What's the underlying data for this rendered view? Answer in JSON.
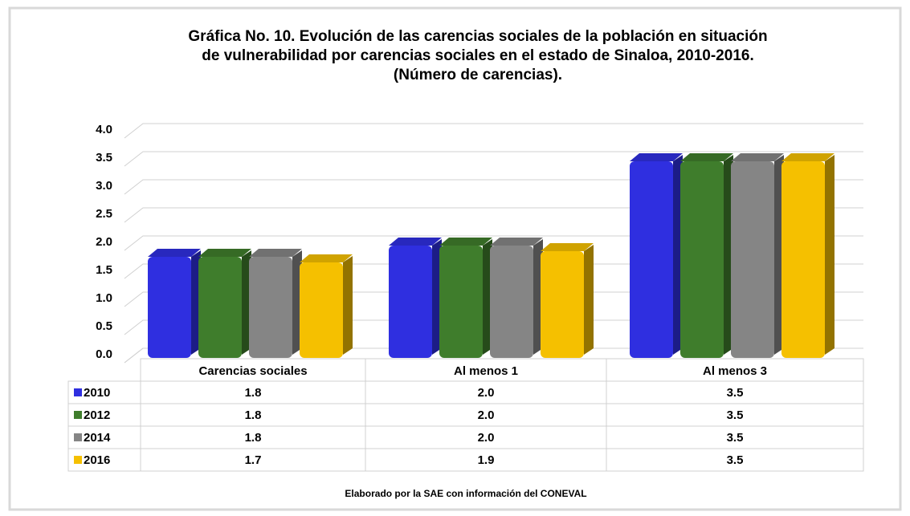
{
  "chart_data": {
    "type": "bar",
    "title": "Gráfica No. 10. Evolución de las carencias sociales de la población en situación de vulnerabilidad por carencias sociales en el estado de Sinaloa, 2010-2016. (Número de carencias).",
    "title_lines": [
      "Gráfica No. 10. Evolución de las carencias sociales de la población en situación",
      "de vulnerabilidad por carencias sociales en el estado de Sinaloa, 2010-2016.",
      "(Número de carencias)."
    ],
    "categories": [
      "Carencias sociales",
      "Al menos 1",
      "Al menos 3"
    ],
    "series": [
      {
        "name": "2010",
        "color": "#2f2fe0",
        "values": [
          1.8,
          2,
          3.5
        ],
        "value_labels": [
          "1.8",
          "2.0",
          "3.5"
        ]
      },
      {
        "name": "2012",
        "color": "#3f7d2c",
        "values": [
          1.8,
          2,
          3.5
        ],
        "value_labels": [
          "1.8",
          "2.0",
          "3.5"
        ]
      },
      {
        "name": "2014",
        "color": "#858585",
        "values": [
          1.8,
          2,
          3.5
        ],
        "value_labels": [
          "1.8",
          "2.0",
          "3.5"
        ]
      },
      {
        "name": "2016",
        "color": "#f5c000",
        "values": [
          1.7,
          1.9,
          3.5
        ],
        "value_labels": [
          "1.7",
          "1.9",
          "3.5"
        ]
      }
    ],
    "ylim": [
      0,
      4
    ],
    "yticks": [
      {
        "value": 0,
        "label": "0.0"
      },
      0.5,
      {
        "value": 1,
        "label": "1.0"
      },
      1.5,
      {
        "value": 2,
        "label": "2.0"
      },
      2.5,
      {
        "value": 3,
        "label": "3.0"
      },
      3.5,
      {
        "value": 4,
        "label": "4.0"
      }
    ],
    "grid": true,
    "source": "Elaborado por la SAE con información del CONEVAL"
  }
}
